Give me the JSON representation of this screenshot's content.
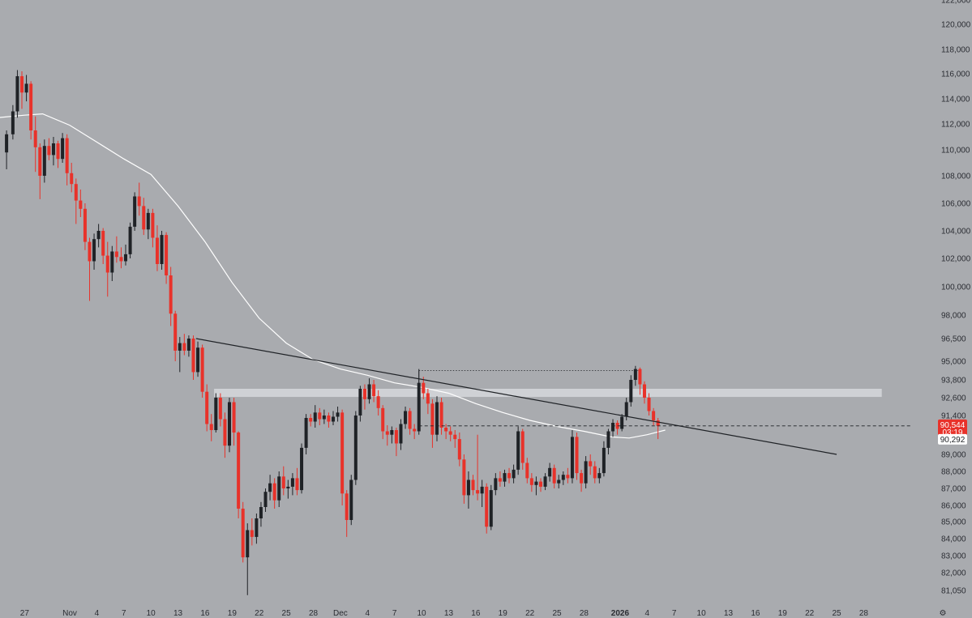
{
  "chart_data": {
    "type": "candlestick",
    "theme": {
      "background": "#a9abaf",
      "bull_color": "#1f2226",
      "bear_color": "#e8322a",
      "ma_color": "#ffffff",
      "trendline_color": "#1f2226",
      "zone_color": "#cfd1d5",
      "axis_text": "#2b2d33"
    },
    "y_axis": {
      "labels": [
        122000,
        120000,
        118000,
        116000,
        114000,
        112000,
        110000,
        108000,
        106000,
        104000,
        102000,
        100000,
        98000,
        96500,
        95000,
        93800,
        92600,
        91400,
        90000,
        89000,
        88000,
        87000,
        86000,
        85000,
        84000,
        83000,
        82000,
        81050
      ],
      "label_text": [
        "122,000",
        "120,000",
        "118,000",
        "116,000",
        "114,000",
        "112,000",
        "110,000",
        "108,000",
        "106,000",
        "104,000",
        "102,000",
        "100,000",
        "98,000",
        "96,500",
        "95,000",
        "93,800",
        "92,600",
        "91,400",
        "90,000",
        "89,000",
        "88,000",
        "87,000",
        "86,000",
        "85,000",
        "84,000",
        "83,000",
        "82,000",
        "81,050"
      ]
    },
    "x_axis": {
      "ticks": [
        {
          "label": "27",
          "day": -5,
          "bold": false
        },
        {
          "label": "Nov",
          "day": 0,
          "bold": false
        },
        {
          "label": "4",
          "day": 3,
          "bold": false
        },
        {
          "label": "7",
          "day": 6,
          "bold": false
        },
        {
          "label": "10",
          "day": 9,
          "bold": false
        },
        {
          "label": "13",
          "day": 12,
          "bold": false
        },
        {
          "label": "16",
          "day": 15,
          "bold": false
        },
        {
          "label": "19",
          "day": 18,
          "bold": false
        },
        {
          "label": "22",
          "day": 21,
          "bold": false
        },
        {
          "label": "25",
          "day": 24,
          "bold": false
        },
        {
          "label": "28",
          "day": 27,
          "bold": false
        },
        {
          "label": "Dec",
          "day": 30,
          "bold": false
        },
        {
          "label": "4",
          "day": 33,
          "bold": false
        },
        {
          "label": "7",
          "day": 36,
          "bold": false
        },
        {
          "label": "10",
          "day": 39,
          "bold": false
        },
        {
          "label": "13",
          "day": 42,
          "bold": false
        },
        {
          "label": "16",
          "day": 45,
          "bold": false
        },
        {
          "label": "19",
          "day": 48,
          "bold": false
        },
        {
          "label": "22",
          "day": 51,
          "bold": false
        },
        {
          "label": "25",
          "day": 54,
          "bold": false
        },
        {
          "label": "28",
          "day": 57,
          "bold": false
        },
        {
          "label": "2026",
          "day": 61,
          "bold": true
        },
        {
          "label": "4",
          "day": 64,
          "bold": false
        },
        {
          "label": "7",
          "day": 67,
          "bold": false
        },
        {
          "label": "10",
          "day": 70,
          "bold": false
        },
        {
          "label": "13",
          "day": 73,
          "bold": false
        },
        {
          "label": "16",
          "day": 76,
          "bold": false
        },
        {
          "label": "19",
          "day": 79,
          "bold": false
        },
        {
          "label": "22",
          "day": 82,
          "bold": false
        },
        {
          "label": "25",
          "day": 85,
          "bold": false
        },
        {
          "label": "28",
          "day": 88,
          "bold": false
        }
      ],
      "settings_glyph": "⚙"
    },
    "candles": [
      [
        -7.0,
        109800,
        111500,
        108500,
        111200
      ],
      [
        -6.3,
        111200,
        113500,
        110800,
        113000
      ],
      [
        -5.8,
        113000,
        116300,
        112500,
        115800
      ],
      [
        -5.3,
        115800,
        116200,
        113200,
        114500
      ],
      [
        -4.8,
        114500,
        115900,
        113800,
        115200
      ],
      [
        -4.3,
        115200,
        115400,
        110800,
        111500
      ],
      [
        -3.8,
        111500,
        112600,
        108300,
        110200
      ],
      [
        -3.3,
        110200,
        110500,
        106300,
        108000
      ],
      [
        -2.8,
        108000,
        110800,
        107500,
        110300
      ],
      [
        -2.3,
        110300,
        110900,
        109200,
        109600
      ],
      [
        -1.8,
        109600,
        111000,
        108800,
        110500
      ],
      [
        -1.3,
        110500,
        110700,
        108600,
        109300
      ],
      [
        -0.8,
        109300,
        111300,
        109000,
        110900
      ],
      [
        -0.3,
        110900,
        111200,
        107300,
        108200
      ],
      [
        0.2,
        108200,
        109000,
        106800,
        107400
      ],
      [
        0.7,
        107400,
        107800,
        104500,
        106200
      ],
      [
        1.2,
        106200,
        107000,
        105000,
        105600
      ],
      [
        1.7,
        105600,
        106000,
        102600,
        103200
      ],
      [
        2.2,
        103200,
        103500,
        99000,
        101800
      ],
      [
        2.7,
        101800,
        103800,
        101200,
        103400
      ],
      [
        3.2,
        103400,
        104500,
        102800,
        104000
      ],
      [
        3.7,
        104000,
        104200,
        101600,
        102200
      ],
      [
        4.2,
        102200,
        103200,
        99300,
        101000
      ],
      [
        4.7,
        101000,
        102900,
        100400,
        102500
      ],
      [
        5.2,
        102500,
        103600,
        101700,
        102100
      ],
      [
        5.7,
        102100,
        102800,
        101300,
        101800
      ],
      [
        6.2,
        101800,
        103000,
        101500,
        102300
      ],
      [
        6.7,
        102300,
        104600,
        102000,
        104300
      ],
      [
        7.2,
        104300,
        106800,
        104000,
        106500
      ],
      [
        7.7,
        106500,
        107500,
        105100,
        105800
      ],
      [
        8.2,
        105800,
        106400,
        103700,
        104100
      ],
      [
        8.7,
        104100,
        105600,
        103400,
        105300
      ],
      [
        9.2,
        105300,
        105600,
        102800,
        103500
      ],
      [
        9.7,
        103500,
        104400,
        101100,
        101600
      ],
      [
        10.2,
        101600,
        104000,
        101200,
        103700
      ],
      [
        10.7,
        103700,
        103900,
        100200,
        100800
      ],
      [
        11.2,
        100800,
        101400,
        97300,
        98100
      ],
      [
        11.7,
        98100,
        98300,
        95000,
        95700
      ],
      [
        12.2,
        95700,
        96600,
        94300,
        96200
      ],
      [
        12.7,
        96200,
        96800,
        95400,
        95700
      ],
      [
        13.2,
        95700,
        96700,
        95300,
        96500
      ],
      [
        13.7,
        96500,
        96700,
        93800,
        94300
      ],
      [
        14.2,
        94300,
        96300,
        94000,
        95900
      ],
      [
        14.7,
        95900,
        96100,
        92600,
        93000
      ],
      [
        15.2,
        93000,
        93500,
        90100,
        90700
      ],
      [
        15.7,
        90700,
        91500,
        89600,
        90200
      ],
      [
        16.2,
        90200,
        92900,
        90000,
        92600
      ],
      [
        16.7,
        92600,
        92900,
        90500,
        91100
      ],
      [
        17.2,
        91100,
        91600,
        88800,
        89400
      ],
      [
        17.7,
        89400,
        92600,
        89100,
        92300
      ],
      [
        18.2,
        92300,
        92600,
        89400,
        90000
      ],
      [
        18.7,
        90000,
        90100,
        85200,
        85800
      ],
      [
        19.2,
        85800,
        86200,
        82600,
        82900
      ],
      [
        19.7,
        82900,
        84900,
        80800,
        84500
      ],
      [
        20.2,
        84500,
        85200,
        83600,
        84100
      ],
      [
        20.7,
        84100,
        85500,
        83700,
        85200
      ],
      [
        21.2,
        85200,
        86200,
        84700,
        85900
      ],
      [
        21.7,
        85900,
        87000,
        85600,
        86800
      ],
      [
        22.2,
        86800,
        87800,
        86300,
        87300
      ],
      [
        22.7,
        87300,
        87600,
        85800,
        86300
      ],
      [
        23.2,
        86300,
        88000,
        85900,
        87700
      ],
      [
        23.7,
        87700,
        88300,
        86600,
        87000
      ],
      [
        24.2,
        87000,
        87500,
        86400,
        87100
      ],
      [
        24.7,
        87100,
        87900,
        86600,
        87600
      ],
      [
        25.2,
        87600,
        88200,
        86600,
        86900
      ],
      [
        25.7,
        86900,
        89500,
        86700,
        89300
      ],
      [
        26.2,
        89300,
        91500,
        89000,
        91200
      ],
      [
        26.7,
        91200,
        91500,
        90500,
        90900
      ],
      [
        27.2,
        90900,
        92100,
        90400,
        91600
      ],
      [
        27.7,
        91600,
        91900,
        90600,
        91100
      ],
      [
        28.2,
        91100,
        91800,
        90700,
        91400
      ],
      [
        28.7,
        91400,
        91600,
        90400,
        90900
      ],
      [
        29.2,
        90900,
        91700,
        90600,
        91300
      ],
      [
        29.7,
        91300,
        92000,
        90900,
        91600
      ],
      [
        30.2,
        91600,
        91800,
        86000,
        86700
      ],
      [
        30.7,
        86700,
        86900,
        84100,
        85100
      ],
      [
        31.2,
        85100,
        87800,
        84800,
        87500
      ],
      [
        31.7,
        87500,
        91700,
        87200,
        91400
      ],
      [
        32.2,
        91400,
        93400,
        90900,
        93200
      ],
      [
        32.7,
        93200,
        93500,
        91800,
        92500
      ],
      [
        33.2,
        92500,
        93900,
        92200,
        93500
      ],
      [
        33.7,
        93500,
        93800,
        92300,
        92700
      ],
      [
        34.2,
        92700,
        93100,
        91400,
        91900
      ],
      [
        34.7,
        91900,
        92100,
        89700,
        90100
      ],
      [
        35.2,
        90100,
        90600,
        89400,
        89900
      ],
      [
        35.7,
        89900,
        90500,
        89500,
        90200
      ],
      [
        36.2,
        90200,
        90400,
        88900,
        89500
      ],
      [
        36.7,
        89500,
        91100,
        89200,
        90700
      ],
      [
        37.2,
        90700,
        92000,
        90300,
        91700
      ],
      [
        37.7,
        91700,
        91900,
        89900,
        90300
      ],
      [
        38.2,
        90300,
        90700,
        89700,
        90100
      ],
      [
        38.7,
        90100,
        94500,
        89900,
        93600
      ],
      [
        39.2,
        93600,
        94000,
        92500,
        92900
      ],
      [
        39.7,
        92900,
        93200,
        91500,
        92200
      ],
      [
        40.2,
        92200,
        92500,
        89300,
        89900
      ],
      [
        40.7,
        89900,
        92700,
        89600,
        92300
      ],
      [
        41.2,
        92300,
        92600,
        89900,
        90400
      ],
      [
        41.7,
        90400,
        90700,
        89700,
        90100
      ],
      [
        42.2,
        90100,
        90500,
        89600,
        89900
      ],
      [
        42.7,
        89900,
        90200,
        89300,
        89700
      ],
      [
        43.2,
        89700,
        90000,
        88300,
        88700
      ],
      [
        43.7,
        88700,
        89000,
        86100,
        86600
      ],
      [
        44.2,
        86600,
        88000,
        85800,
        87500
      ],
      [
        44.7,
        87500,
        87800,
        86600,
        86900
      ],
      [
        45.2,
        86900,
        89900,
        86300,
        86700
      ],
      [
        45.7,
        86700,
        87500,
        85900,
        87100
      ],
      [
        46.2,
        87100,
        87300,
        84300,
        84700
      ],
      [
        46.7,
        84700,
        87200,
        84500,
        86900
      ],
      [
        47.2,
        86900,
        87900,
        86600,
        87600
      ],
      [
        47.7,
        87600,
        88000,
        87100,
        87400
      ],
      [
        48.2,
        87400,
        88100,
        87100,
        87900
      ],
      [
        48.7,
        87900,
        88200,
        87300,
        87600
      ],
      [
        49.2,
        87600,
        88400,
        87300,
        88100
      ],
      [
        49.7,
        88100,
        90500,
        87800,
        90100
      ],
      [
        50.2,
        90100,
        90300,
        88100,
        88500
      ],
      [
        50.7,
        88500,
        88800,
        87300,
        87600
      ],
      [
        51.2,
        87600,
        87900,
        86800,
        87200
      ],
      [
        51.7,
        87200,
        87700,
        86600,
        87400
      ],
      [
        52.2,
        87400,
        87600,
        86800,
        87100
      ],
      [
        52.7,
        87100,
        87900,
        86900,
        87700
      ],
      [
        53.2,
        87700,
        88500,
        87400,
        88200
      ],
      [
        53.7,
        88200,
        88400,
        87000,
        87300
      ],
      [
        54.2,
        87300,
        87800,
        87000,
        87500
      ],
      [
        54.7,
        87500,
        88000,
        87200,
        87800
      ],
      [
        55.2,
        87800,
        88200,
        87300,
        87600
      ],
      [
        55.7,
        87600,
        90200,
        87300,
        89800
      ],
      [
        56.2,
        89800,
        90000,
        87500,
        87900
      ],
      [
        56.7,
        87900,
        88100,
        86800,
        87300
      ],
      [
        57.2,
        87300,
        88900,
        87000,
        88600
      ],
      [
        57.7,
        88600,
        89000,
        87800,
        88300
      ],
      [
        58.2,
        88300,
        88600,
        87300,
        87600
      ],
      [
        58.7,
        87600,
        88200,
        87300,
        87900
      ],
      [
        59.2,
        87900,
        89600,
        87700,
        89300
      ],
      [
        59.7,
        89300,
        90300,
        89000,
        90100
      ],
      [
        60.2,
        90100,
        91100,
        89800,
        90800
      ],
      [
        60.7,
        90800,
        91000,
        89900,
        90300
      ],
      [
        61.2,
        90300,
        91500,
        90100,
        91300
      ],
      [
        61.7,
        91300,
        92600,
        91000,
        92300
      ],
      [
        62.2,
        92300,
        94100,
        92000,
        93800
      ],
      [
        62.7,
        93800,
        94700,
        93400,
        94500
      ],
      [
        63.2,
        94500,
        94600,
        92800,
        93500
      ],
      [
        63.7,
        93500,
        93700,
        92200,
        92600
      ],
      [
        64.2,
        92600,
        92900,
        91400,
        91700
      ],
      [
        64.7,
        91700,
        91900,
        90600,
        91000
      ],
      [
        65.2,
        91000,
        91200,
        89700,
        90544
      ]
    ],
    "ma_points": [
      [
        -8.0,
        112500
      ],
      [
        -5.0,
        112700
      ],
      [
        -3.0,
        112800
      ],
      [
        0.0,
        111900
      ],
      [
        3.0,
        110600
      ],
      [
        6.0,
        109300
      ],
      [
        9.0,
        108100
      ],
      [
        12.0,
        105800
      ],
      [
        15.0,
        103200
      ],
      [
        18.0,
        100300
      ],
      [
        21.0,
        97800
      ],
      [
        24.0,
        96200
      ],
      [
        27.0,
        95100
      ],
      [
        30.0,
        94500
      ],
      [
        33.0,
        94100
      ],
      [
        36.0,
        93600
      ],
      [
        39.0,
        93300
      ],
      [
        42.0,
        92900
      ],
      [
        45.0,
        92200
      ],
      [
        48.0,
        91600
      ],
      [
        51.0,
        91000
      ],
      [
        54.0,
        90500
      ],
      [
        57.0,
        90100
      ],
      [
        60.0,
        89800
      ],
      [
        62.0,
        89750
      ],
      [
        64.0,
        89900
      ],
      [
        66.0,
        90200
      ]
    ],
    "trendline": {
      "from": [
        14.0,
        96500
      ],
      "to": [
        85.0,
        89000
      ]
    },
    "resistance_zone": {
      "from_day": 16.0,
      "to_day": 90.0,
      "top": 93200,
      "bottom": 92650
    },
    "range_box": {
      "from_day": 38.7,
      "to_day": 63.0,
      "top": 94400,
      "bottom": 90290
    },
    "current_price": {
      "value": 90544,
      "label": "90,544",
      "countdown": "03:19",
      "line_from_day": 38.7
    },
    "ma_value": {
      "value": 90292,
      "label": "90,292"
    }
  }
}
